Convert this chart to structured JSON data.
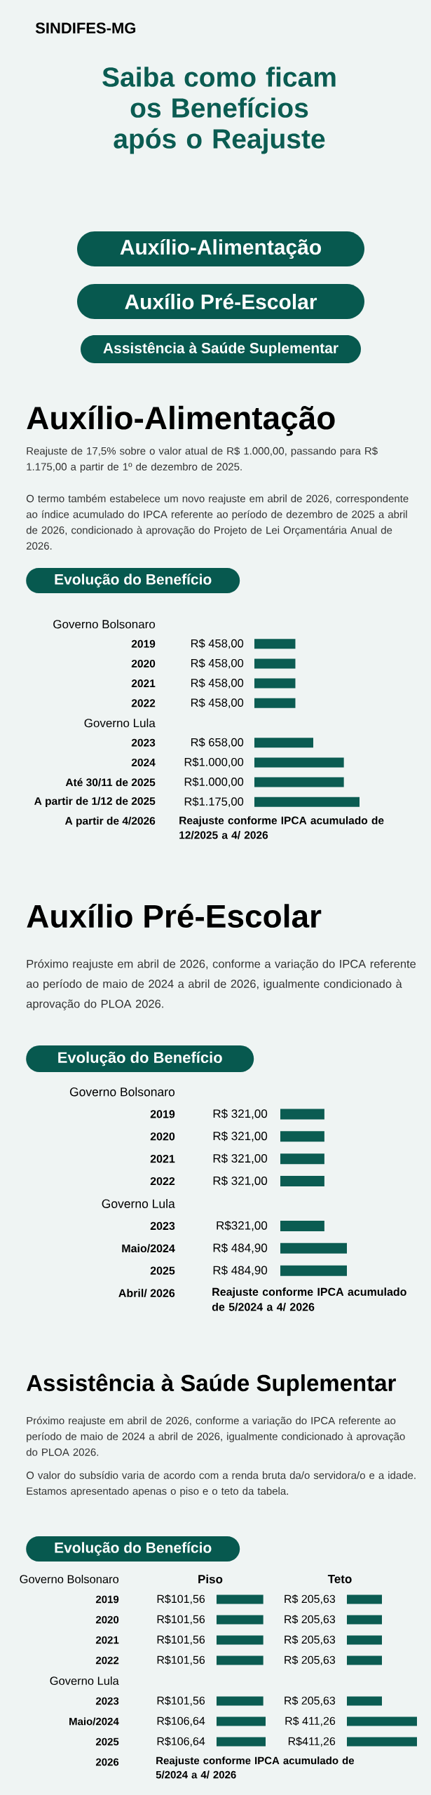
{
  "chart_data": [
    {
      "type": "bar",
      "orientation": "horizontal",
      "title": "Evolução do Benefício",
      "color": "#0b5c52",
      "categories": [
        "Governo Bolsonaro",
        "2019",
        "2020",
        "2021",
        "2022",
        "Governo Lula",
        "2023",
        "2024",
        "Até 30/11 de 2025",
        "A partir de 1/12 de 2025",
        "A partir de 4/2026"
      ],
      "values": [
        null,
        458,
        458,
        458,
        458,
        null,
        658,
        1000,
        1000,
        1175,
        null
      ],
      "value_labels": [
        null,
        "R$ 458,00",
        "R$ 458,00",
        "R$ 458,00",
        "R$ 458,00",
        null,
        "R$ 658,00",
        "R$1.000,00",
        "R$1.000,00",
        "R$1.175,00",
        null
      ],
      "annotations": [
        "SINDIFES-MG",
        "Saiba como ficam os Benefícios após o Reajuste",
        "Auxílio-Alimentação",
        "Auxílio Pré-Escolar",
        "Assistência à Saúde Suplementar",
        "Auxílio-Alimentação",
        "Reajuste de 17,5% sobre o valor atual de R$ 1.000,00, passando para R$ 1.175,00 a partir de 1º de dezembro de 2025.",
        "O termo também estabelece um novo reajuste em abril de 2026, correspondente ao índice acumulado do IPCA referente ao período de dezembro de 2025 a abril de 2026, condicionado à aprovação do Projeto de Lei Orçamentária Anual de 2026.",
        "Reajuste conforme IPCA acumulado de 12/2025 a 4/ 2026"
      ]
    },
    {
      "type": "bar",
      "orientation": "horizontal",
      "title": "Evolução do Benefício",
      "color": "#0b5c52",
      "categories": [
        "Governo Bolsonaro",
        "2019",
        "2020",
        "2021",
        "2022",
        "Governo Lula",
        "2023",
        "Maio/2024",
        "2025",
        "Abril/ 2026"
      ],
      "values": [
        null,
        321,
        321,
        321,
        321,
        null,
        321,
        484.9,
        484.9,
        null
      ],
      "value_labels": [
        null,
        "R$ 321,00",
        "R$ 321,00",
        "R$ 321,00",
        "R$ 321,00",
        null,
        "R$321,00",
        "R$ 484,90",
        "R$ 484,90",
        null
      ],
      "annotations": [
        "Auxílio Pré-Escolar",
        "Próximo reajuste em abril de 2026, conforme a variação do IPCA referente ao período de maio de 2024 a abril de 2026, igualmente condicionado à aprovação do PLOA 2026.",
        "Reajuste conforme IPCA acumulado de 5/2024 a 4/ 2026"
      ]
    },
    {
      "type": "bar",
      "orientation": "horizontal",
      "title": "Piso",
      "color": "#0b5c52",
      "categories": [
        "Governo Bolsonaro",
        "2019",
        "2020",
        "2021",
        "2022",
        "Governo Lula",
        "2023",
        "Maio/2024",
        "2025",
        "2026"
      ],
      "values": [
        null,
        101.56,
        101.56,
        101.56,
        101.56,
        null,
        101.56,
        106.64,
        106.64,
        null
      ],
      "value_labels": [
        null,
        "R$101,56",
        "R$101,56",
        "R$101,56",
        "R$101,56",
        null,
        "R$101,56",
        "R$106,64",
        "R$106,64",
        null
      ],
      "annotations": [
        "Assistência à Saúde Suplementar",
        "Próximo reajuste em abril de 2026, conforme a variação do IPCA referente ao período de maio de 2024 a abril de 2026, igualmente condicionado à aprovação do PLOA 2026.",
        "O valor do subsídio varia de acordo com a renda bruta da/o servidora/o e a idade. Estamos apresentado apenas o piso e o teto da tabela.",
        "Evolução do Benefício",
        "Reajuste conforme IPCA acumulado de 5/2024 a 4/ 2026"
      ]
    },
    {
      "type": "bar",
      "orientation": "horizontal",
      "title": "Teto",
      "color": "#0b5c52",
      "categories": [
        null,
        null,
        null,
        null,
        null,
        null,
        null,
        null,
        null,
        null
      ],
      "values": [
        null,
        205.63,
        205.63,
        205.63,
        205.63,
        null,
        205.63,
        411.26,
        411.26,
        null
      ],
      "value_labels": [
        null,
        "R$ 205,63",
        "R$ 205,63",
        "R$ 205,63",
        "R$ 205,63",
        null,
        "R$ 205,63",
        "R$ 411,26",
        "R$411,26",
        null
      ]
    }
  ]
}
